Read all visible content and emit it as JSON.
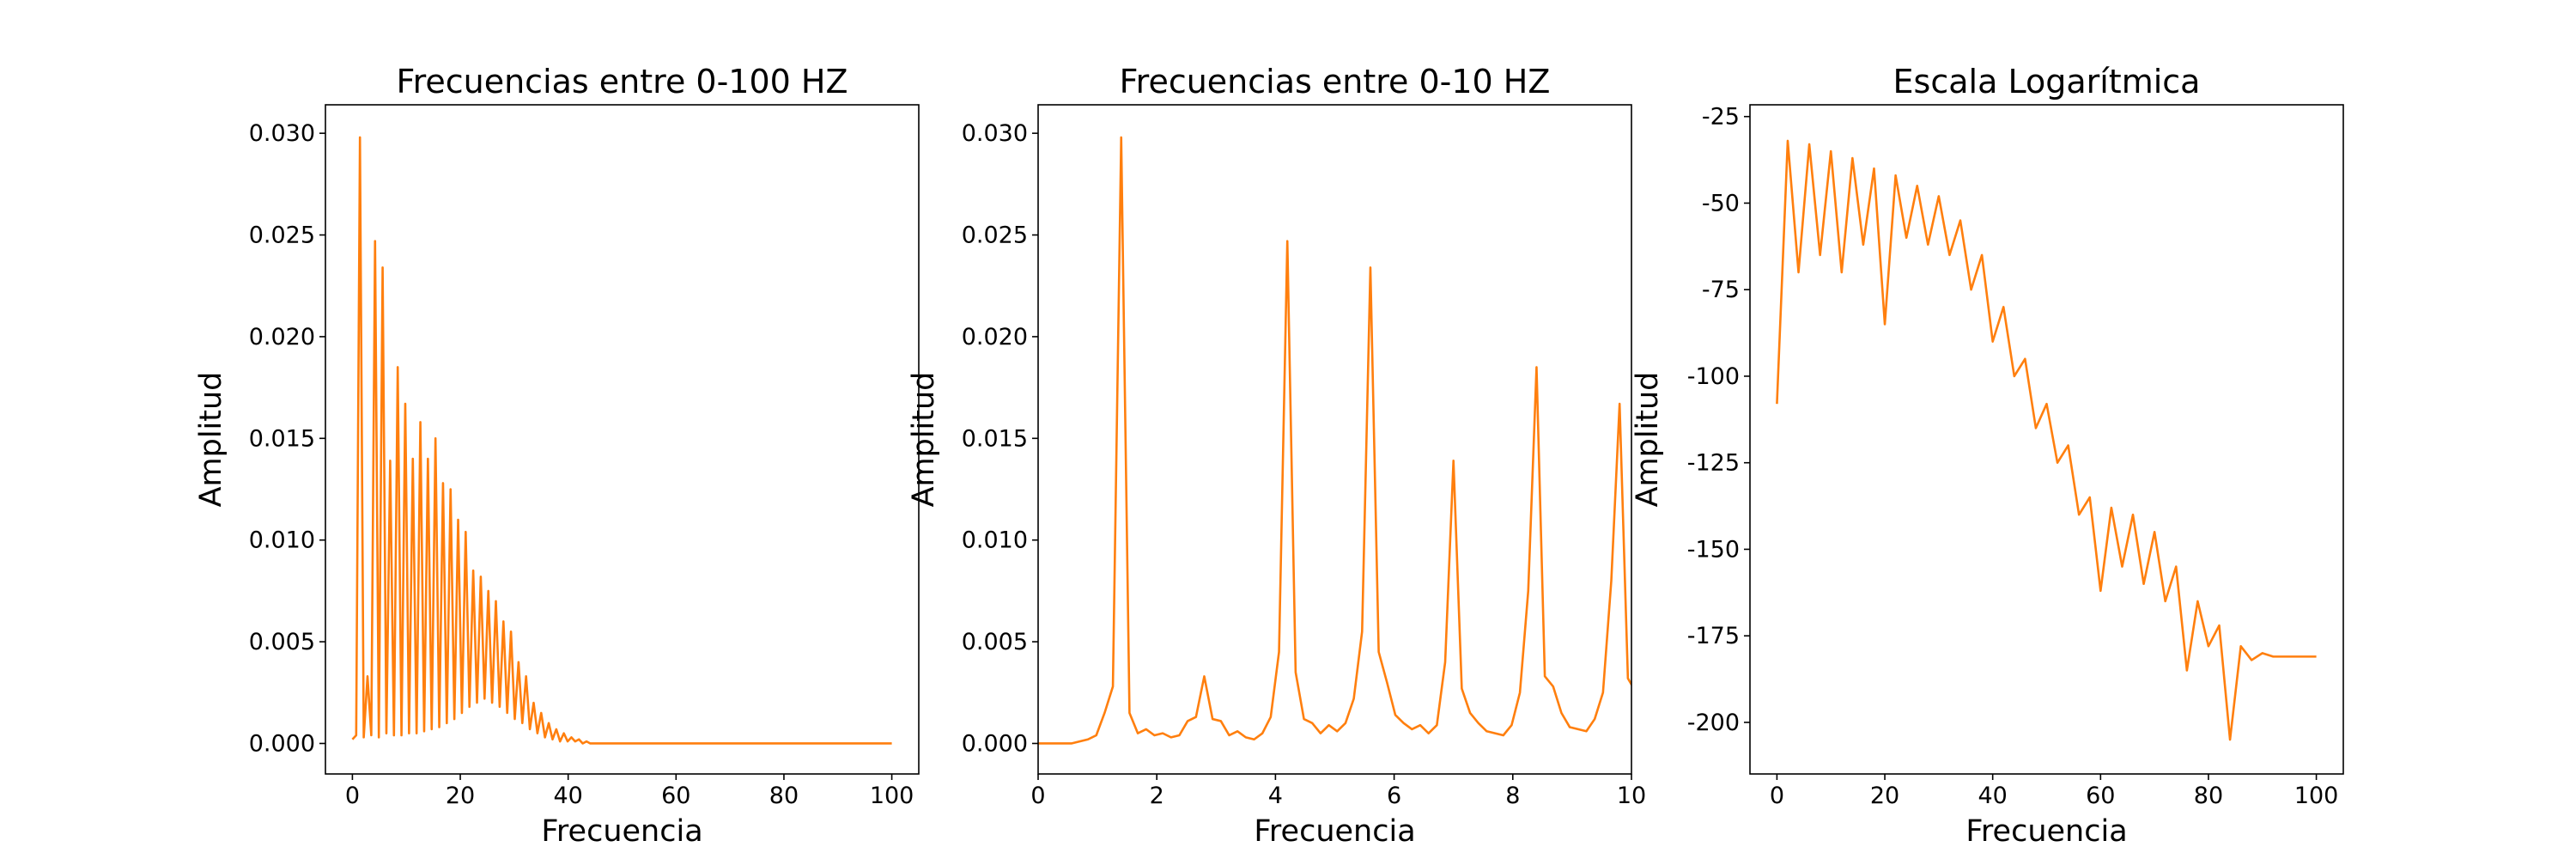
{
  "chart_data": [
    {
      "type": "line",
      "title": "Frecuencias entre 0-100 HZ",
      "xlabel": "Frecuencia",
      "ylabel": "Amplitud",
      "color": "#ff7f0e",
      "x": [
        0,
        0.7,
        1.4,
        2.1,
        2.8,
        3.5,
        4.2,
        4.9,
        5.6,
        6.3,
        7.0,
        7.7,
        8.4,
        9.1,
        9.8,
        10.5,
        11.2,
        11.9,
        12.6,
        13.3,
        14.0,
        14.7,
        15.4,
        16.1,
        16.8,
        17.5,
        18.2,
        18.9,
        19.6,
        20.3,
        21.0,
        21.7,
        22.4,
        23.1,
        23.8,
        24.5,
        25.2,
        25.9,
        26.6,
        27.3,
        28.0,
        28.7,
        29.4,
        30.1,
        30.8,
        31.5,
        32.2,
        32.9,
        33.6,
        34.3,
        35.0,
        35.7,
        36.4,
        37.1,
        37.8,
        38.5,
        39.2,
        39.9,
        40.6,
        41.3,
        42.0,
        42.7,
        43.4,
        44.1,
        50,
        60,
        70,
        80,
        90,
        100
      ],
      "values": [
        0.0002,
        0.0004,
        0.0298,
        0.0003,
        0.0033,
        0.0004,
        0.0247,
        0.0003,
        0.0234,
        0.0005,
        0.0139,
        0.0004,
        0.0185,
        0.0004,
        0.0167,
        0.0005,
        0.014,
        0.0005,
        0.0158,
        0.0006,
        0.014,
        0.0007,
        0.015,
        0.0008,
        0.0128,
        0.001,
        0.0125,
        0.0012,
        0.011,
        0.0015,
        0.0104,
        0.0018,
        0.0085,
        0.002,
        0.0082,
        0.0022,
        0.0075,
        0.002,
        0.007,
        0.0018,
        0.006,
        0.0015,
        0.0055,
        0.0012,
        0.004,
        0.001,
        0.0033,
        0.0007,
        0.002,
        0.0005,
        0.0015,
        0.0003,
        0.001,
        0.0002,
        0.0007,
        0.0001,
        0.0005,
        0.0001,
        0.0003,
        0.0001,
        0.0002,
        0,
        0.0001,
        0,
        0,
        0,
        0,
        0,
        0,
        0
      ],
      "xlim": [
        -5,
        105
      ],
      "xticks": [
        0,
        20,
        40,
        60,
        80,
        100
      ],
      "ylim": [
        -0.0015,
        0.0314
      ],
      "yticks": [
        {
          "value": 0,
          "label": "0.000"
        },
        {
          "value": 0.005,
          "label": "0.005"
        },
        {
          "value": 0.01,
          "label": "0.010"
        },
        {
          "value": 0.015,
          "label": "0.015"
        },
        {
          "value": 0.02,
          "label": "0.020"
        },
        {
          "value": 0.025,
          "label": "0.025"
        },
        {
          "value": 0.03,
          "label": "0.030"
        }
      ]
    },
    {
      "type": "line",
      "title": "Frecuencias entre 0-10 HZ",
      "xlabel": "Frecuencia",
      "ylabel": "Amplitud",
      "color": "#ff7f0e",
      "x": [
        0,
        0.14,
        0.28,
        0.42,
        0.56,
        0.7,
        0.84,
        0.98,
        1.12,
        1.26,
        1.4,
        1.54,
        1.68,
        1.82,
        1.96,
        2.1,
        2.24,
        2.38,
        2.52,
        2.66,
        2.8,
        2.94,
        3.08,
        3.22,
        3.36,
        3.5,
        3.64,
        3.78,
        3.92,
        4.06,
        4.2,
        4.34,
        4.48,
        4.62,
        4.76,
        4.9,
        5.04,
        5.18,
        5.32,
        5.46,
        5.6,
        5.74,
        5.88,
        6.02,
        6.16,
        6.3,
        6.44,
        6.58,
        6.72,
        6.86,
        7.0,
        7.14,
        7.28,
        7.42,
        7.56,
        7.7,
        7.84,
        7.98,
        8.12,
        8.26,
        8.4,
        8.54,
        8.68,
        8.82,
        8.96,
        9.1,
        9.24,
        9.38,
        9.52,
        9.66,
        9.8,
        9.94,
        10.08
      ],
      "values": [
        0,
        0,
        0,
        0,
        0,
        0.0001,
        0.0002,
        0.0004,
        0.0015,
        0.0028,
        0.0298,
        0.0015,
        0.0005,
        0.0007,
        0.0004,
        0.0005,
        0.0003,
        0.0004,
        0.0011,
        0.0013,
        0.0033,
        0.0012,
        0.0011,
        0.0004,
        0.0006,
        0.0003,
        0.0002,
        0.0005,
        0.0013,
        0.0045,
        0.0247,
        0.0035,
        0.0012,
        0.001,
        0.0005,
        0.0009,
        0.0006,
        0.001,
        0.0022,
        0.0055,
        0.0234,
        0.0045,
        0.003,
        0.0014,
        0.001,
        0.0007,
        0.0009,
        0.0005,
        0.0009,
        0.004,
        0.0139,
        0.0027,
        0.0015,
        0.001,
        0.0006,
        0.0005,
        0.0004,
        0.0009,
        0.0025,
        0.0075,
        0.0185,
        0.0033,
        0.0028,
        0.0015,
        0.0008,
        0.0007,
        0.0006,
        0.0012,
        0.0025,
        0.008,
        0.0167,
        0.0032,
        0.0025
      ],
      "xlim": [
        0,
        10
      ],
      "xticks": [
        0,
        2,
        4,
        6,
        8,
        10
      ],
      "ylim": [
        -0.0015,
        0.0314
      ],
      "yticks": [
        {
          "value": 0,
          "label": "0.000"
        },
        {
          "value": 0.005,
          "label": "0.005"
        },
        {
          "value": 0.01,
          "label": "0.010"
        },
        {
          "value": 0.015,
          "label": "0.015"
        },
        {
          "value": 0.02,
          "label": "0.020"
        },
        {
          "value": 0.025,
          "label": "0.025"
        },
        {
          "value": 0.03,
          "label": "0.030"
        }
      ]
    },
    {
      "type": "line",
      "title": "Escala Logarítmica",
      "xlabel": "Frecuencia",
      "ylabel": "Amplitud",
      "color": "#ff7f0e",
      "x": [
        0,
        2,
        4,
        6,
        8,
        10,
        12,
        14,
        16,
        18,
        20,
        22,
        24,
        26,
        28,
        30,
        32,
        34,
        36,
        38,
        40,
        42,
        44,
        46,
        48,
        50,
        52,
        54,
        56,
        58,
        60,
        62,
        64,
        66,
        68,
        70,
        72,
        74,
        76,
        78,
        80,
        82,
        84,
        86,
        88,
        90,
        92,
        94,
        96,
        98,
        100
      ],
      "values": [
        -108,
        -32,
        -70,
        -33,
        -65,
        -35,
        -70,
        -37,
        -62,
        -40,
        -85,
        -42,
        -60,
        -45,
        -62,
        -48,
        -65,
        -55,
        -75,
        -65,
        -90,
        -80,
        -100,
        -95,
        -115,
        -108,
        -125,
        -120,
        -140,
        -135,
        -162,
        -138,
        -155,
        -140,
        -160,
        -145,
        -165,
        -155,
        -185,
        -165,
        -178,
        -172,
        -205,
        -178,
        -182,
        -180,
        -181,
        -181,
        -181,
        -181,
        -181
      ],
      "xlim": [
        -5,
        105
      ],
      "xticks": [
        0,
        20,
        40,
        60,
        80,
        100
      ],
      "ylim": [
        -214.9,
        -21.6
      ],
      "yticks": [
        -200,
        -175,
        -150,
        -125,
        -100,
        -75,
        -50,
        -25
      ]
    }
  ]
}
